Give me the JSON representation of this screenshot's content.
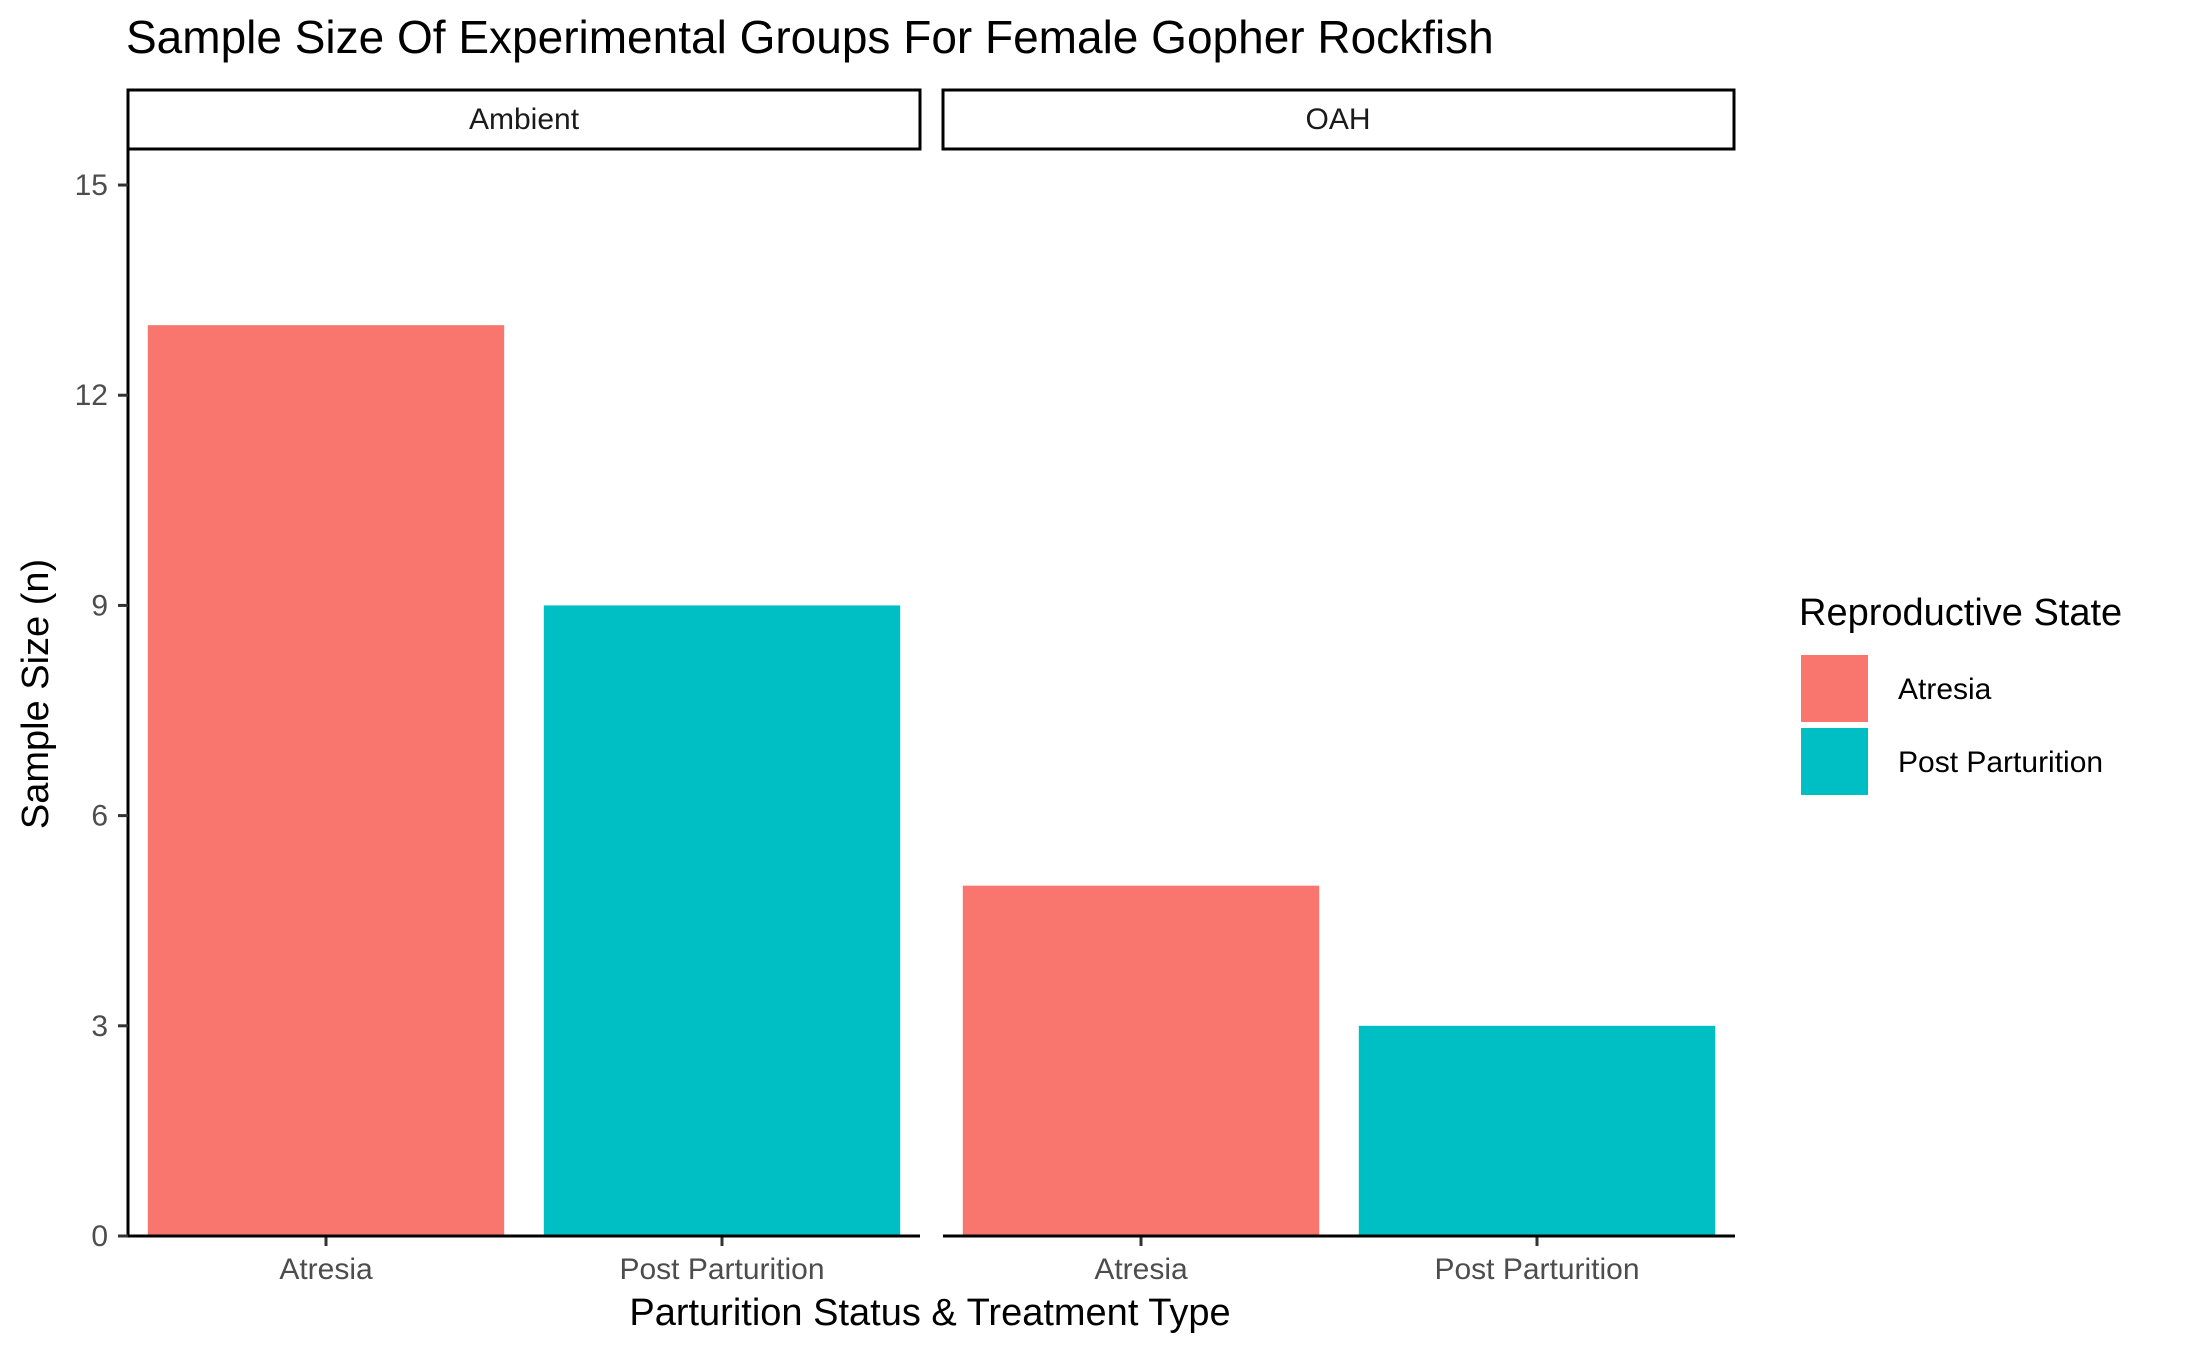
{
  "chart_data": {
    "type": "bar",
    "title": "Sample Size Of Experimental Groups For Female Gopher Rockfish",
    "xlabel": "Parturition Status & Treatment Type",
    "ylabel": "Sample Size (n)",
    "ylim": [
      0,
      15.5
    ],
    "yticks": [
      "0",
      "3",
      "6",
      "9",
      "12",
      "15"
    ],
    "grid": false,
    "legend": {
      "title": "Reproductive State",
      "position": "right",
      "items": [
        {
          "label": "Atresia",
          "color": "#F8766D"
        },
        {
          "label": "Post Parturition",
          "color": "#00BFC4"
        }
      ]
    },
    "categories": [
      "Atresia",
      "Post Parturition"
    ],
    "facets": [
      {
        "label": "Ambient",
        "values": [
          13,
          9
        ]
      },
      {
        "label": "OAH",
        "values": [
          5,
          3
        ]
      }
    ]
  }
}
